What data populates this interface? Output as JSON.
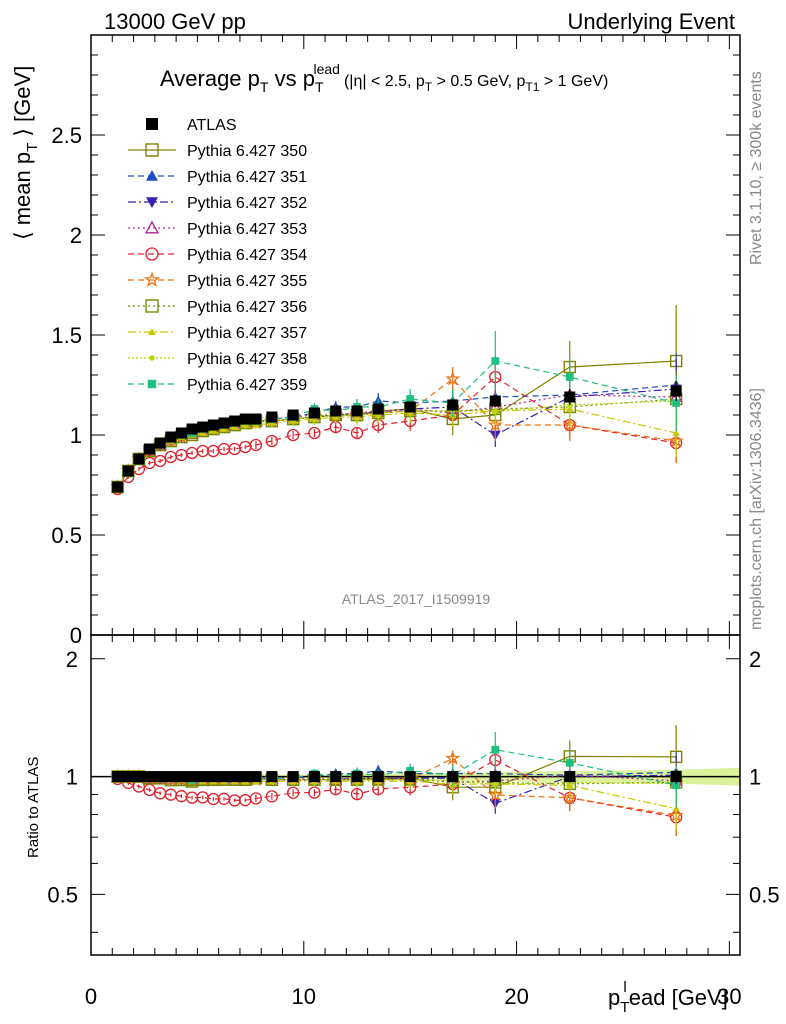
{
  "header": {
    "left": "13000 GeV pp",
    "right": "Underlying Event"
  },
  "side": {
    "rivet": "Rivet 3.1.10, ≥ 300k events",
    "mcplots": "mcplots.cern.ch [arXiv:1306.3436]"
  },
  "analysis_id": "ATLAS_2017_I1509919",
  "colors": {
    "atlas": "#000000"
  },
  "chart_data": [
    {
      "type": "scatter",
      "title": {
        "p1": "Average p",
        "s1": "T",
        "p2": " vs p",
        "s2": "T",
        "sup2": "lead",
        "p3": "(|η| < 2.5, p",
        "s3": "T",
        "p4": " > 0.5 GeV, p",
        "s4": "T1",
        "p5": " > 1 GeV)"
      },
      "ylabel": {
        "p1": "⟨ mean p",
        "s1": "T",
        "p2": " ⟩ [GeV]"
      },
      "xlabel": {
        "p1": "p",
        "s1": "T",
        "sup1": "l",
        "p2": "ead [GeV]"
      },
      "xlim": [
        0,
        30.5
      ],
      "ylim": [
        0,
        3.0
      ],
      "xticks": [
        "0",
        "10",
        "20",
        "30"
      ],
      "yticks": [
        "0",
        "0.5",
        "1",
        "1.5",
        "2",
        "2.5"
      ],
      "x": [
        1.25,
        1.75,
        2.25,
        2.75,
        3.25,
        3.75,
        4.25,
        4.75,
        5.25,
        5.75,
        6.25,
        6.75,
        7.25,
        7.75,
        8.5,
        9.5,
        10.5,
        11.5,
        12.5,
        13.5,
        15.0,
        17.0,
        19.0,
        22.5,
        27.5
      ],
      "series": [
        {
          "name": "ATLAS",
          "color": "#000000",
          "marker": "square-filled",
          "dash": "none",
          "values": [
            0.74,
            0.82,
            0.88,
            0.93,
            0.96,
            0.99,
            1.01,
            1.03,
            1.04,
            1.05,
            1.06,
            1.07,
            1.08,
            1.08,
            1.09,
            1.1,
            1.11,
            1.12,
            1.12,
            1.13,
            1.14,
            1.15,
            1.17,
            1.19,
            1.22
          ],
          "errors": [
            0.01,
            0.01,
            0.01,
            0.01,
            0.01,
            0.01,
            0.01,
            0.01,
            0.01,
            0.01,
            0.01,
            0.01,
            0.01,
            0.01,
            0.01,
            0.01,
            0.01,
            0.01,
            0.02,
            0.02,
            0.02,
            0.03,
            0.03,
            0.04,
            0.05
          ]
        },
        {
          "name": "Pythia 6.427 350",
          "color": "#808000",
          "marker": "square-open",
          "dash": "solid",
          "values": [
            0.74,
            0.82,
            0.88,
            0.92,
            0.95,
            0.97,
            0.99,
            1.0,
            1.02,
            1.03,
            1.04,
            1.05,
            1.06,
            1.07,
            1.07,
            1.08,
            1.09,
            1.1,
            1.1,
            1.12,
            1.13,
            1.08,
            1.1,
            1.34,
            1.37
          ],
          "errors": [
            0.01,
            0.01,
            0.01,
            0.01,
            0.01,
            0.01,
            0.01,
            0.01,
            0.01,
            0.01,
            0.01,
            0.01,
            0.02,
            0.02,
            0.02,
            0.02,
            0.03,
            0.03,
            0.04,
            0.05,
            0.06,
            0.08,
            0.1,
            0.13,
            0.28
          ]
        },
        {
          "name": "Pythia 6.427 351",
          "color": "#1f4fbf",
          "marker": "triangle-up",
          "dash": "6,4",
          "values": [
            0.74,
            0.82,
            0.88,
            0.93,
            0.95,
            0.98,
            1.0,
            1.02,
            1.03,
            1.04,
            1.05,
            1.06,
            1.07,
            1.07,
            1.08,
            1.09,
            1.11,
            1.14,
            1.14,
            1.17,
            1.16,
            1.17,
            1.19,
            1.2,
            1.25
          ],
          "errors": [
            0.01,
            0.01,
            0.01,
            0.01,
            0.01,
            0.01,
            0.01,
            0.01,
            0.01,
            0.01,
            0.01,
            0.01,
            0.02,
            0.02,
            0.02,
            0.02,
            0.03,
            0.03,
            0.04,
            0.04,
            0.05,
            0.07,
            0.08,
            0.1,
            0.16
          ]
        },
        {
          "name": "Pythia 6.427 352",
          "color": "#3a1fb0",
          "marker": "triangle-down",
          "dash": "8,3,2,3",
          "values": [
            0.74,
            0.82,
            0.88,
            0.92,
            0.95,
            0.97,
            0.99,
            1.01,
            1.02,
            1.03,
            1.04,
            1.05,
            1.06,
            1.07,
            1.07,
            1.08,
            1.09,
            1.1,
            1.11,
            1.11,
            1.13,
            1.14,
            1.0,
            1.19,
            1.23
          ],
          "errors": [
            0.01,
            0.01,
            0.01,
            0.01,
            0.01,
            0.01,
            0.01,
            0.01,
            0.01,
            0.01,
            0.01,
            0.01,
            0.02,
            0.02,
            0.02,
            0.02,
            0.03,
            0.03,
            0.04,
            0.04,
            0.05,
            0.07,
            0.06,
            0.1,
            0.15
          ]
        },
        {
          "name": "Pythia 6.427 353",
          "color": "#b0208f",
          "marker": "triangle-up-open",
          "dash": "2,3",
          "values": [
            0.74,
            0.82,
            0.88,
            0.92,
            0.95,
            0.98,
            1.0,
            1.01,
            1.03,
            1.04,
            1.05,
            1.06,
            1.07,
            1.07,
            1.08,
            1.09,
            1.1,
            1.1,
            1.11,
            1.12,
            1.13,
            1.11,
            1.14,
            1.2,
            1.19
          ],
          "errors": [
            0.01,
            0.01,
            0.01,
            0.01,
            0.01,
            0.01,
            0.01,
            0.01,
            0.01,
            0.01,
            0.01,
            0.01,
            0.02,
            0.02,
            0.02,
            0.02,
            0.03,
            0.03,
            0.04,
            0.04,
            0.05,
            0.07,
            0.08,
            0.1,
            0.14
          ]
        },
        {
          "name": "Pythia 6.427 354",
          "color": "#e0202b",
          "marker": "circle-open",
          "dash": "6,4",
          "values": [
            0.73,
            0.79,
            0.83,
            0.86,
            0.87,
            0.89,
            0.9,
            0.91,
            0.92,
            0.92,
            0.93,
            0.93,
            0.94,
            0.95,
            0.97,
            1.0,
            1.01,
            1.04,
            1.01,
            1.05,
            1.07,
            1.1,
            1.29,
            1.05,
            0.96
          ],
          "errors": [
            0.01,
            0.01,
            0.01,
            0.01,
            0.01,
            0.01,
            0.01,
            0.01,
            0.01,
            0.01,
            0.01,
            0.01,
            0.01,
            0.02,
            0.02,
            0.02,
            0.02,
            0.03,
            0.03,
            0.04,
            0.05,
            0.06,
            0.08,
            0.07,
            0.1
          ]
        },
        {
          "name": "Pythia 6.427 355",
          "color": "#f07010",
          "marker": "star-open",
          "dash": "6,4",
          "values": [
            0.74,
            0.82,
            0.88,
            0.92,
            0.95,
            0.97,
            0.99,
            1.01,
            1.02,
            1.03,
            1.04,
            1.05,
            1.06,
            1.06,
            1.07,
            1.08,
            1.09,
            1.1,
            1.1,
            1.11,
            1.12,
            1.28,
            1.05,
            1.05,
            0.97
          ],
          "errors": [
            0.01,
            0.01,
            0.01,
            0.01,
            0.01,
            0.01,
            0.01,
            0.01,
            0.01,
            0.01,
            0.01,
            0.01,
            0.02,
            0.02,
            0.02,
            0.02,
            0.03,
            0.03,
            0.04,
            0.04,
            0.05,
            0.06,
            0.08,
            0.08,
            0.11
          ]
        },
        {
          "name": "Pythia 6.427 356",
          "color": "#6f8f00",
          "marker": "square-open",
          "dash": "2,3",
          "values": [
            0.74,
            0.82,
            0.88,
            0.92,
            0.95,
            0.97,
            0.99,
            1.01,
            1.02,
            1.03,
            1.04,
            1.05,
            1.06,
            1.07,
            1.07,
            1.08,
            1.09,
            1.1,
            1.1,
            1.11,
            1.12,
            1.12,
            1.13,
            1.14,
            1.18
          ],
          "errors": [
            0.01,
            0.01,
            0.01,
            0.01,
            0.01,
            0.01,
            0.01,
            0.01,
            0.01,
            0.01,
            0.01,
            0.01,
            0.02,
            0.02,
            0.02,
            0.02,
            0.03,
            0.03,
            0.04,
            0.04,
            0.05,
            0.07,
            0.08,
            0.1,
            0.14
          ]
        },
        {
          "name": "Pythia 6.427 357",
          "color": "#c8c800",
          "marker": "tri-small",
          "dash": "8,3,2,3",
          "values": [
            0.74,
            0.82,
            0.88,
            0.92,
            0.95,
            0.97,
            0.99,
            1.0,
            1.01,
            1.02,
            1.03,
            1.04,
            1.05,
            1.05,
            1.06,
            1.07,
            1.08,
            1.09,
            1.09,
            1.1,
            1.11,
            1.1,
            1.12,
            1.13,
            1.01
          ],
          "errors": [
            0.01,
            0.01,
            0.01,
            0.01,
            0.01,
            0.01,
            0.01,
            0.01,
            0.01,
            0.01,
            0.01,
            0.01,
            0.02,
            0.02,
            0.02,
            0.02,
            0.03,
            0.03,
            0.04,
            0.04,
            0.05,
            0.06,
            0.07,
            0.09,
            0.12
          ]
        },
        {
          "name": "Pythia 6.427 358",
          "color": "#b5d600",
          "marker": "dot-small",
          "dash": "2,2",
          "values": [
            0.74,
            0.82,
            0.88,
            0.92,
            0.95,
            0.97,
            0.99,
            1.01,
            1.02,
            1.03,
            1.04,
            1.05,
            1.06,
            1.07,
            1.07,
            1.08,
            1.09,
            1.1,
            1.1,
            1.11,
            1.12,
            1.12,
            1.12,
            1.15,
            1.17
          ],
          "errors": [
            0.01,
            0.01,
            0.01,
            0.01,
            0.01,
            0.01,
            0.01,
            0.01,
            0.01,
            0.01,
            0.01,
            0.01,
            0.02,
            0.02,
            0.02,
            0.02,
            0.03,
            0.03,
            0.04,
            0.04,
            0.05,
            0.06,
            0.07,
            0.09,
            0.12
          ]
        },
        {
          "name": "Pythia 6.427 359",
          "color": "#1fbf7f",
          "marker": "square-small",
          "dash": "6,4",
          "values": [
            0.74,
            0.82,
            0.88,
            0.93,
            0.95,
            0.98,
            1.0,
            1.01,
            1.03,
            1.04,
            1.05,
            1.06,
            1.07,
            1.07,
            1.08,
            1.09,
            1.13,
            1.12,
            1.14,
            1.14,
            1.18,
            1.16,
            1.37,
            1.29,
            1.16
          ],
          "errors": [
            0.01,
            0.01,
            0.01,
            0.01,
            0.01,
            0.01,
            0.01,
            0.01,
            0.01,
            0.01,
            0.01,
            0.01,
            0.02,
            0.02,
            0.02,
            0.02,
            0.03,
            0.03,
            0.04,
            0.04,
            0.05,
            0.07,
            0.15,
            0.1,
            0.14
          ]
        }
      ]
    },
    {
      "type": "scatter",
      "ylabel": "Ratio to ATLAS",
      "xlim": [
        0,
        30.5
      ],
      "ylim": [
        0.35,
        2.3
      ],
      "yticks": [
        "0.5",
        "1",
        "2"
      ],
      "reference": 1.0,
      "band_color": "#d8f090"
    }
  ]
}
